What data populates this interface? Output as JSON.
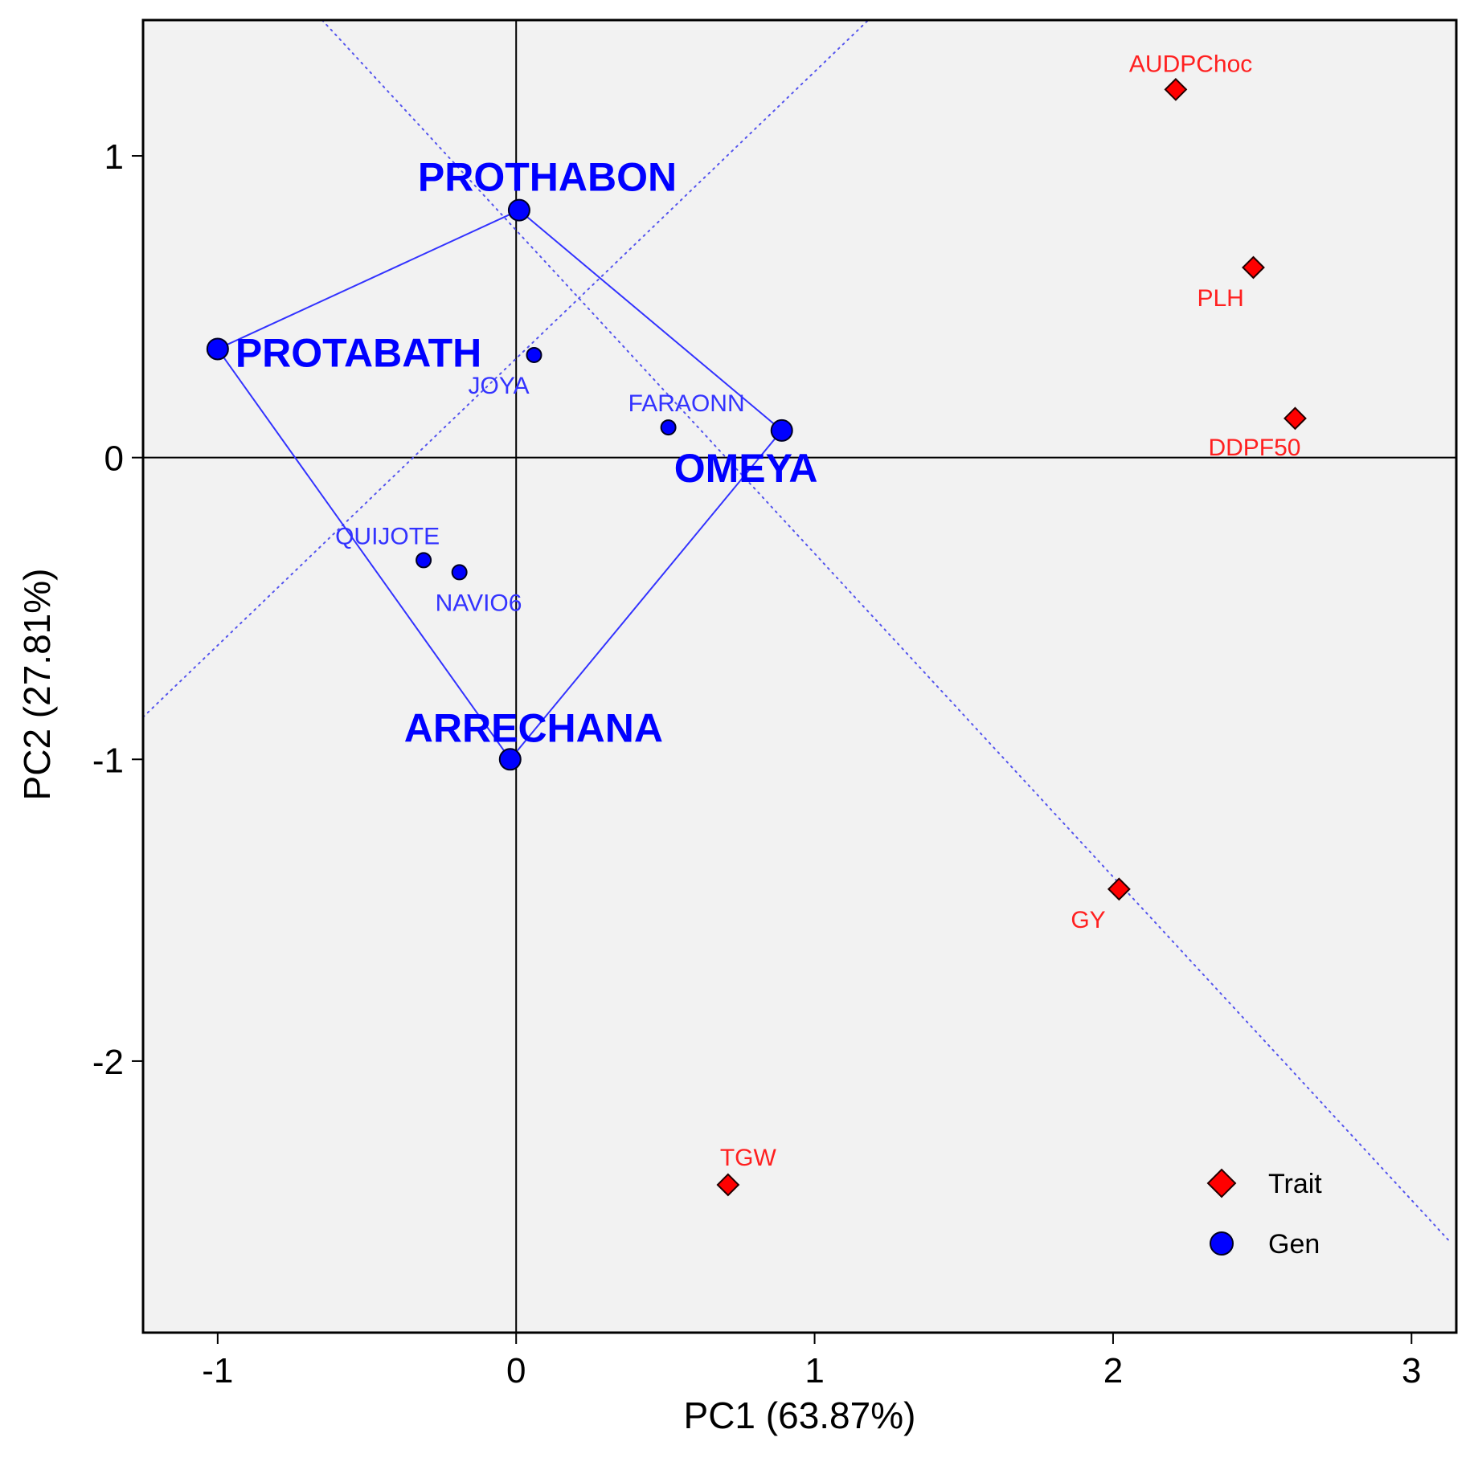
{
  "chart_data": {
    "type": "scatter",
    "subtype": "GGE biplot (which-won-where)",
    "title": "",
    "xlabel": "PC1 (63.87%)",
    "ylabel": "PC2 (27.81%)",
    "xlim": [
      -1.25,
      3.15
    ],
    "ylim": [
      -2.9,
      1.45
    ],
    "x_ticks": [
      -1,
      0,
      1,
      2,
      3
    ],
    "x_tick_labels": [
      "-1",
      "0",
      "1",
      "2",
      "3"
    ],
    "y_ticks": [
      -2,
      -1,
      0,
      1
    ],
    "y_tick_labels": [
      "-2",
      "-1",
      "0",
      "1"
    ],
    "grid": false,
    "background": "#f2f2f2",
    "reference_lines": {
      "x": 0,
      "y": 0
    },
    "genotypes": [
      {
        "name": "PROTHABON",
        "x": 0.01,
        "y": 0.82,
        "vertex": true
      },
      {
        "name": "PROTABATH",
        "x": -1.0,
        "y": 0.36,
        "vertex": true
      },
      {
        "name": "OMEYA",
        "x": 0.89,
        "y": 0.09,
        "vertex": true
      },
      {
        "name": "ARRECHANA",
        "x": -0.02,
        "y": -1.0,
        "vertex": true
      },
      {
        "name": "JOYA",
        "x": 0.06,
        "y": 0.34,
        "vertex": false
      },
      {
        "name": "FARAONN",
        "x": 0.51,
        "y": 0.1,
        "vertex": false
      },
      {
        "name": "QUIJOTE",
        "x": -0.31,
        "y": -0.34,
        "vertex": false
      },
      {
        "name": "NAVIO6",
        "x": -0.19,
        "y": -0.38,
        "vertex": false
      }
    ],
    "traits": [
      {
        "name": "AUDPChoc",
        "x": 2.21,
        "y": 1.22
      },
      {
        "name": "PLH",
        "x": 2.47,
        "y": 0.63
      },
      {
        "name": "DDPF50",
        "x": 2.61,
        "y": 0.13
      },
      {
        "name": "GY",
        "x": 2.02,
        "y": -1.43
      },
      {
        "name": "TGW",
        "x": 0.71,
        "y": -2.41
      }
    ],
    "polygon_order": [
      "PROTHABON",
      "OMEYA",
      "ARRECHANA",
      "PROTABATH"
    ],
    "sector_lines": [
      {
        "from": [
          -0.65,
          1.45
        ],
        "to": [
          3.13,
          -2.6
        ]
      },
      {
        "from": [
          -1.25,
          -0.86
        ],
        "to": [
          1.18,
          1.45
        ]
      }
    ],
    "legend": {
      "position": "bottom-right",
      "items": [
        {
          "label": "Trait",
          "marker": "diamond",
          "color": "#ff0000"
        },
        {
          "label": "Gen",
          "marker": "circle",
          "color": "#0000ff"
        }
      ]
    },
    "colors": {
      "genotype": "#0000ff",
      "genotype_label": "#3333ff",
      "trait": "#ff0000",
      "trait_label": "#ff2020",
      "polygon": "#3333ff",
      "sector": "#5555ee"
    }
  }
}
